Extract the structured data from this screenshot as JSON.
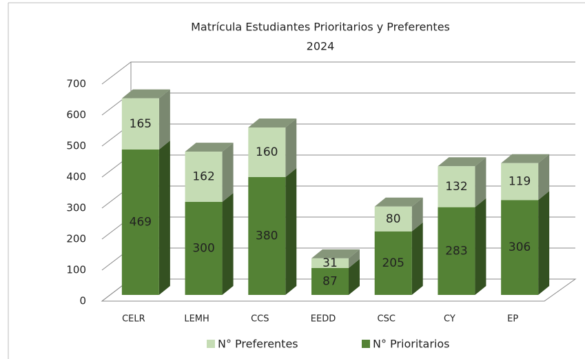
{
  "chart_data": {
    "type": "bar3d_stacked",
    "title": "Matrícula Estudiantes Prioritarios  y Preferentes",
    "subtitle": "2024",
    "categories": [
      "CELR",
      "LEMH",
      "CCS",
      "EEDD",
      "CSC",
      "CY",
      "EP"
    ],
    "series": [
      {
        "name": "N° Preferentes",
        "color": "#c5dcb4",
        "values": [
          165,
          162,
          160,
          31,
          80,
          132,
          119
        ]
      },
      {
        "name": "N° Prioritarios",
        "color": "#548235",
        "values": [
          469,
          300,
          380,
          87,
          205,
          283,
          306
        ]
      }
    ],
    "ylim": [
      0,
      700
    ],
    "yticks": [
      0,
      100,
      200,
      300,
      400,
      500,
      600,
      700
    ],
    "grid": true,
    "legend": "bottom"
  }
}
